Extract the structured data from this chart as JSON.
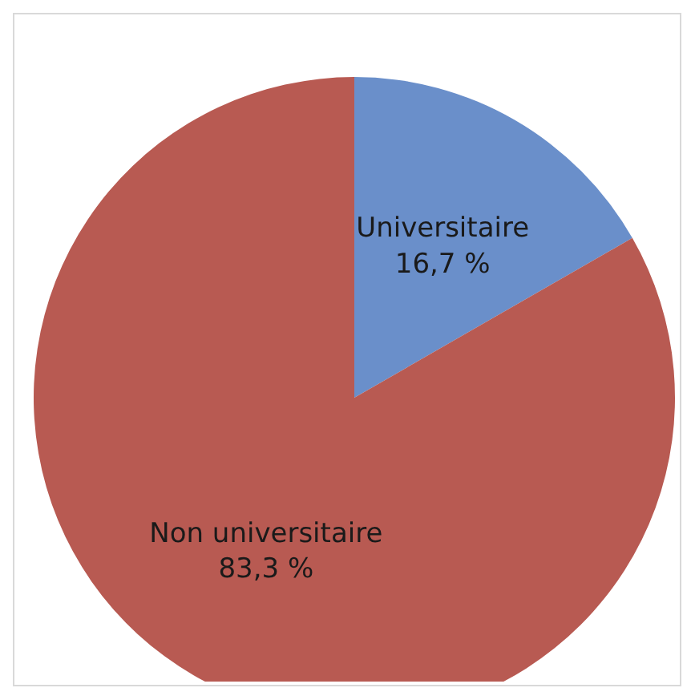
{
  "chart_data": {
    "type": "pie",
    "categories": [
      "Universitaire",
      "Non universitaire"
    ],
    "values": [
      16.7,
      83.3
    ],
    "value_labels": [
      "16,7 %",
      "83,3 %"
    ],
    "colors": [
      "#6a8fca",
      "#b85a52"
    ],
    "legend": false
  }
}
